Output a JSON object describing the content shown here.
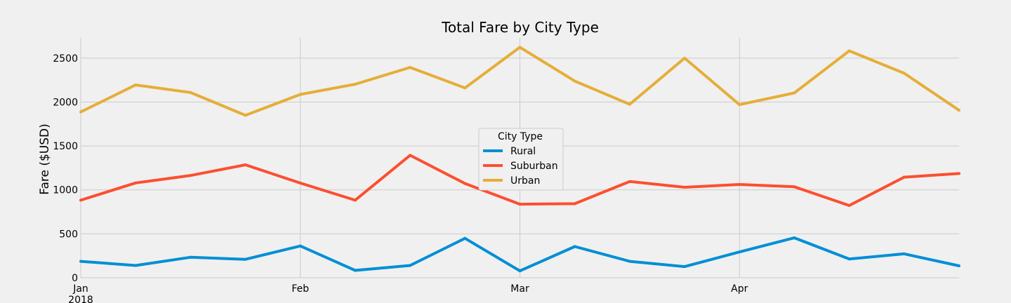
{
  "chart_data": {
    "type": "line",
    "title": "Total Fare by City Type",
    "xlabel": "",
    "ylabel": "Fare ($USD)",
    "ylim": [
      0,
      2730
    ],
    "yticks": [
      0,
      500,
      1000,
      1500,
      2000,
      2500
    ],
    "x": [
      "2018-01-06",
      "2018-01-13",
      "2018-01-20",
      "2018-01-27",
      "2018-02-03",
      "2018-02-10",
      "2018-02-17",
      "2018-02-24",
      "2018-03-03",
      "2018-03-10",
      "2018-03-17",
      "2018-03-24",
      "2018-03-31",
      "2018-04-07",
      "2018-04-14",
      "2018-04-21",
      "2018-04-28"
    ],
    "xticks": [
      {
        "value": "2018-01-06",
        "label": "Jan",
        "sublabel": "2018"
      },
      {
        "value": "2018-02-03",
        "label": "Feb"
      },
      {
        "value": "2018-03-03",
        "label": "Mar"
      },
      {
        "value": "2018-03-31",
        "label": "Apr"
      }
    ],
    "grid": true,
    "legend": {
      "title": "City Type",
      "placement": "center"
    },
    "series": [
      {
        "name": "Rural",
        "color": "#008fd5",
        "values": [
          187,
          140,
          233,
          210,
          362,
          84,
          140,
          449,
          78,
          355,
          187,
          127,
          294,
          454,
          214,
          272,
          136
        ]
      },
      {
        "name": "Suburban",
        "color": "#fc4f30",
        "values": [
          883,
          1079,
          1164,
          1285,
          1078,
          883,
          1394,
          1073,
          837,
          843,
          1095,
          1030,
          1062,
          1035,
          822,
          1145,
          1186
        ]
      },
      {
        "name": "Urban",
        "color": "#e5ae38",
        "values": [
          1887,
          2194,
          2108,
          1849,
          2087,
          2202,
          2394,
          2160,
          2623,
          2238,
          1974,
          2499,
          1970,
          2103,
          2582,
          2328,
          1906
        ]
      }
    ]
  }
}
